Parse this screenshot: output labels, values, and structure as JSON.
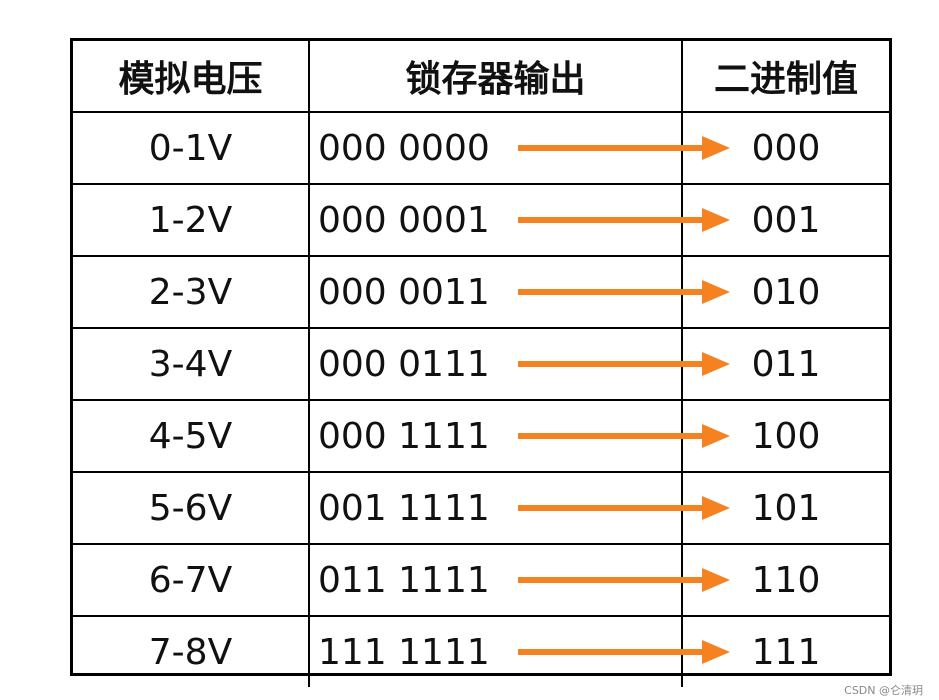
{
  "headers": {
    "voltage": "模拟电压",
    "latch": "锁存器输出",
    "binary": "二进制值"
  },
  "rows": [
    {
      "voltage": "0-1V",
      "latch": "000 0000",
      "binary": "000"
    },
    {
      "voltage": "1-2V",
      "latch": "000 0001",
      "binary": "001"
    },
    {
      "voltage": "2-3V",
      "latch": "000 0011",
      "binary": "010"
    },
    {
      "voltage": "3-4V",
      "latch": "000 0111",
      "binary": "011"
    },
    {
      "voltage": "4-5V",
      "latch": "000 1111",
      "binary": "100"
    },
    {
      "voltage": "5-6V",
      "latch": "001 1111",
      "binary": "101"
    },
    {
      "voltage": "6-7V",
      "latch": "011 1111",
      "binary": "110"
    },
    {
      "voltage": "7-8V",
      "latch": "111 1111",
      "binary": "111"
    }
  ],
  "arrow_color": "#f58220",
  "arrow_icon": "arrow-right-icon",
  "watermark": "CSDN @仑清玥"
}
